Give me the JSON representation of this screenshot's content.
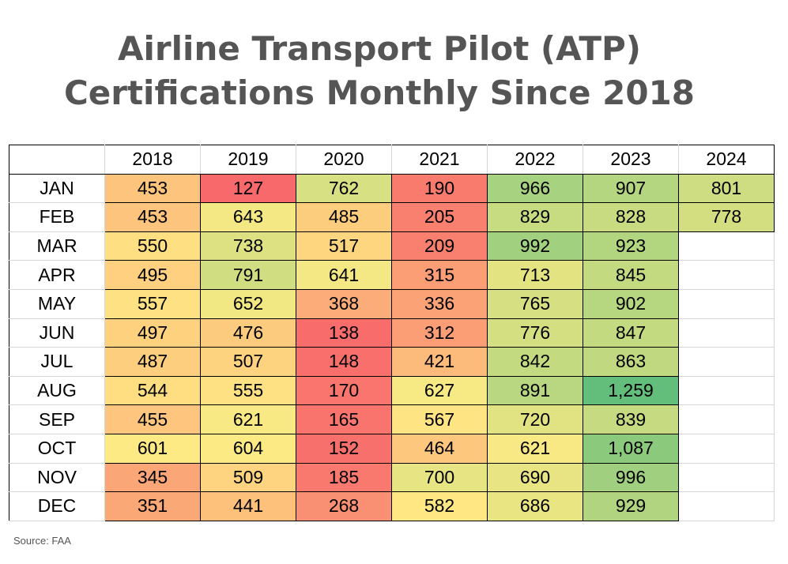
{
  "title_lines": [
    "Airline Transport Pilot (ATP)",
    "Certifications Monthly Since 2018"
  ],
  "source": "Source: FAA",
  "chart_data": {
    "type": "heatmap",
    "title": "Airline Transport Pilot (ATP) Certifications Monthly Since 2018",
    "columns": [
      "2018",
      "2019",
      "2020",
      "2021",
      "2022",
      "2023",
      "2024"
    ],
    "rows": [
      "JAN",
      "FEB",
      "MAR",
      "APR",
      "MAY",
      "JUN",
      "JUL",
      "AUG",
      "SEP",
      "OCT",
      "NOV",
      "DEC"
    ],
    "values": [
      [
        453,
        127,
        762,
        190,
        966,
        907,
        801
      ],
      [
        453,
        643,
        485,
        205,
        829,
        828,
        778
      ],
      [
        550,
        738,
        517,
        209,
        992,
        923,
        null
      ],
      [
        495,
        791,
        641,
        315,
        713,
        845,
        null
      ],
      [
        557,
        652,
        368,
        336,
        765,
        902,
        null
      ],
      [
        497,
        476,
        138,
        312,
        776,
        847,
        null
      ],
      [
        487,
        507,
        148,
        421,
        842,
        863,
        null
      ],
      [
        544,
        555,
        170,
        627,
        891,
        1259,
        null
      ],
      [
        455,
        621,
        165,
        567,
        720,
        839,
        null
      ],
      [
        601,
        604,
        152,
        464,
        621,
        1087,
        null
      ],
      [
        345,
        509,
        185,
        700,
        690,
        996,
        null
      ],
      [
        351,
        441,
        268,
        582,
        686,
        929,
        null
      ]
    ],
    "color_scale": {
      "low": "#f8696b",
      "mid": "#ffeb84",
      "high": "#63be7b",
      "min": 127,
      "max": 1259
    },
    "source": "Source: FAA"
  }
}
